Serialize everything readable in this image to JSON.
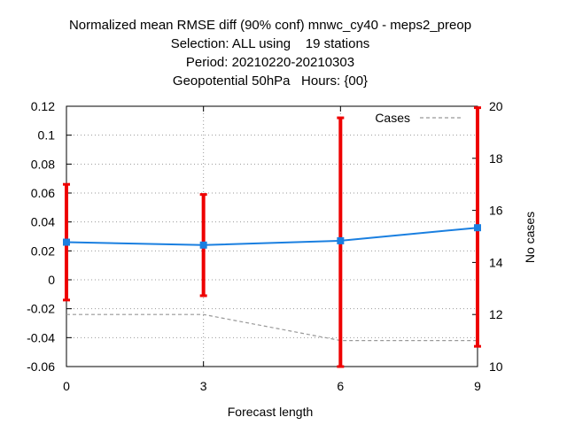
{
  "title_lines": [
    "Normalized mean RMSE diff (90% conf) mnwc_cy40 - meps2_preop",
    "Selection: ALL using    19 stations",
    "Period: 20210220-20210303",
    "Geopotential 50hPa   Hours: {00}"
  ],
  "chart_data": {
    "type": "line",
    "xlabel": "Forecast length",
    "ylabel": "",
    "y2label": "No cases",
    "x": [
      0,
      3,
      6,
      9
    ],
    "xticks": [
      "0",
      "3",
      "6",
      "9"
    ],
    "xlim": [
      0,
      9
    ],
    "ylim": [
      -0.06,
      0.12
    ],
    "yticks": [
      "-0.06",
      "-0.04",
      "-0.02",
      "0",
      "0.02",
      "0.04",
      "0.06",
      "0.08",
      "0.1",
      "0.12"
    ],
    "y2lim": [
      10,
      20
    ],
    "y2ticks": [
      "10",
      "12",
      "14",
      "16",
      "18",
      "20"
    ],
    "grid": true,
    "legend_position": "top-right",
    "series": [
      {
        "axis": "y",
        "color": "#1a7fe0",
        "values": [
          0.026,
          0.024,
          0.027,
          0.036
        ]
      },
      {
        "name": "Cases",
        "axis": "y2",
        "style": "dashed",
        "color": "#999999",
        "values": [
          12,
          12,
          11,
          11
        ]
      }
    ],
    "error_bars": {
      "color": "#ee0000",
      "lower": [
        -0.014,
        -0.011,
        -0.06,
        -0.046
      ],
      "upper": [
        0.066,
        0.059,
        0.112,
        0.119
      ]
    }
  }
}
